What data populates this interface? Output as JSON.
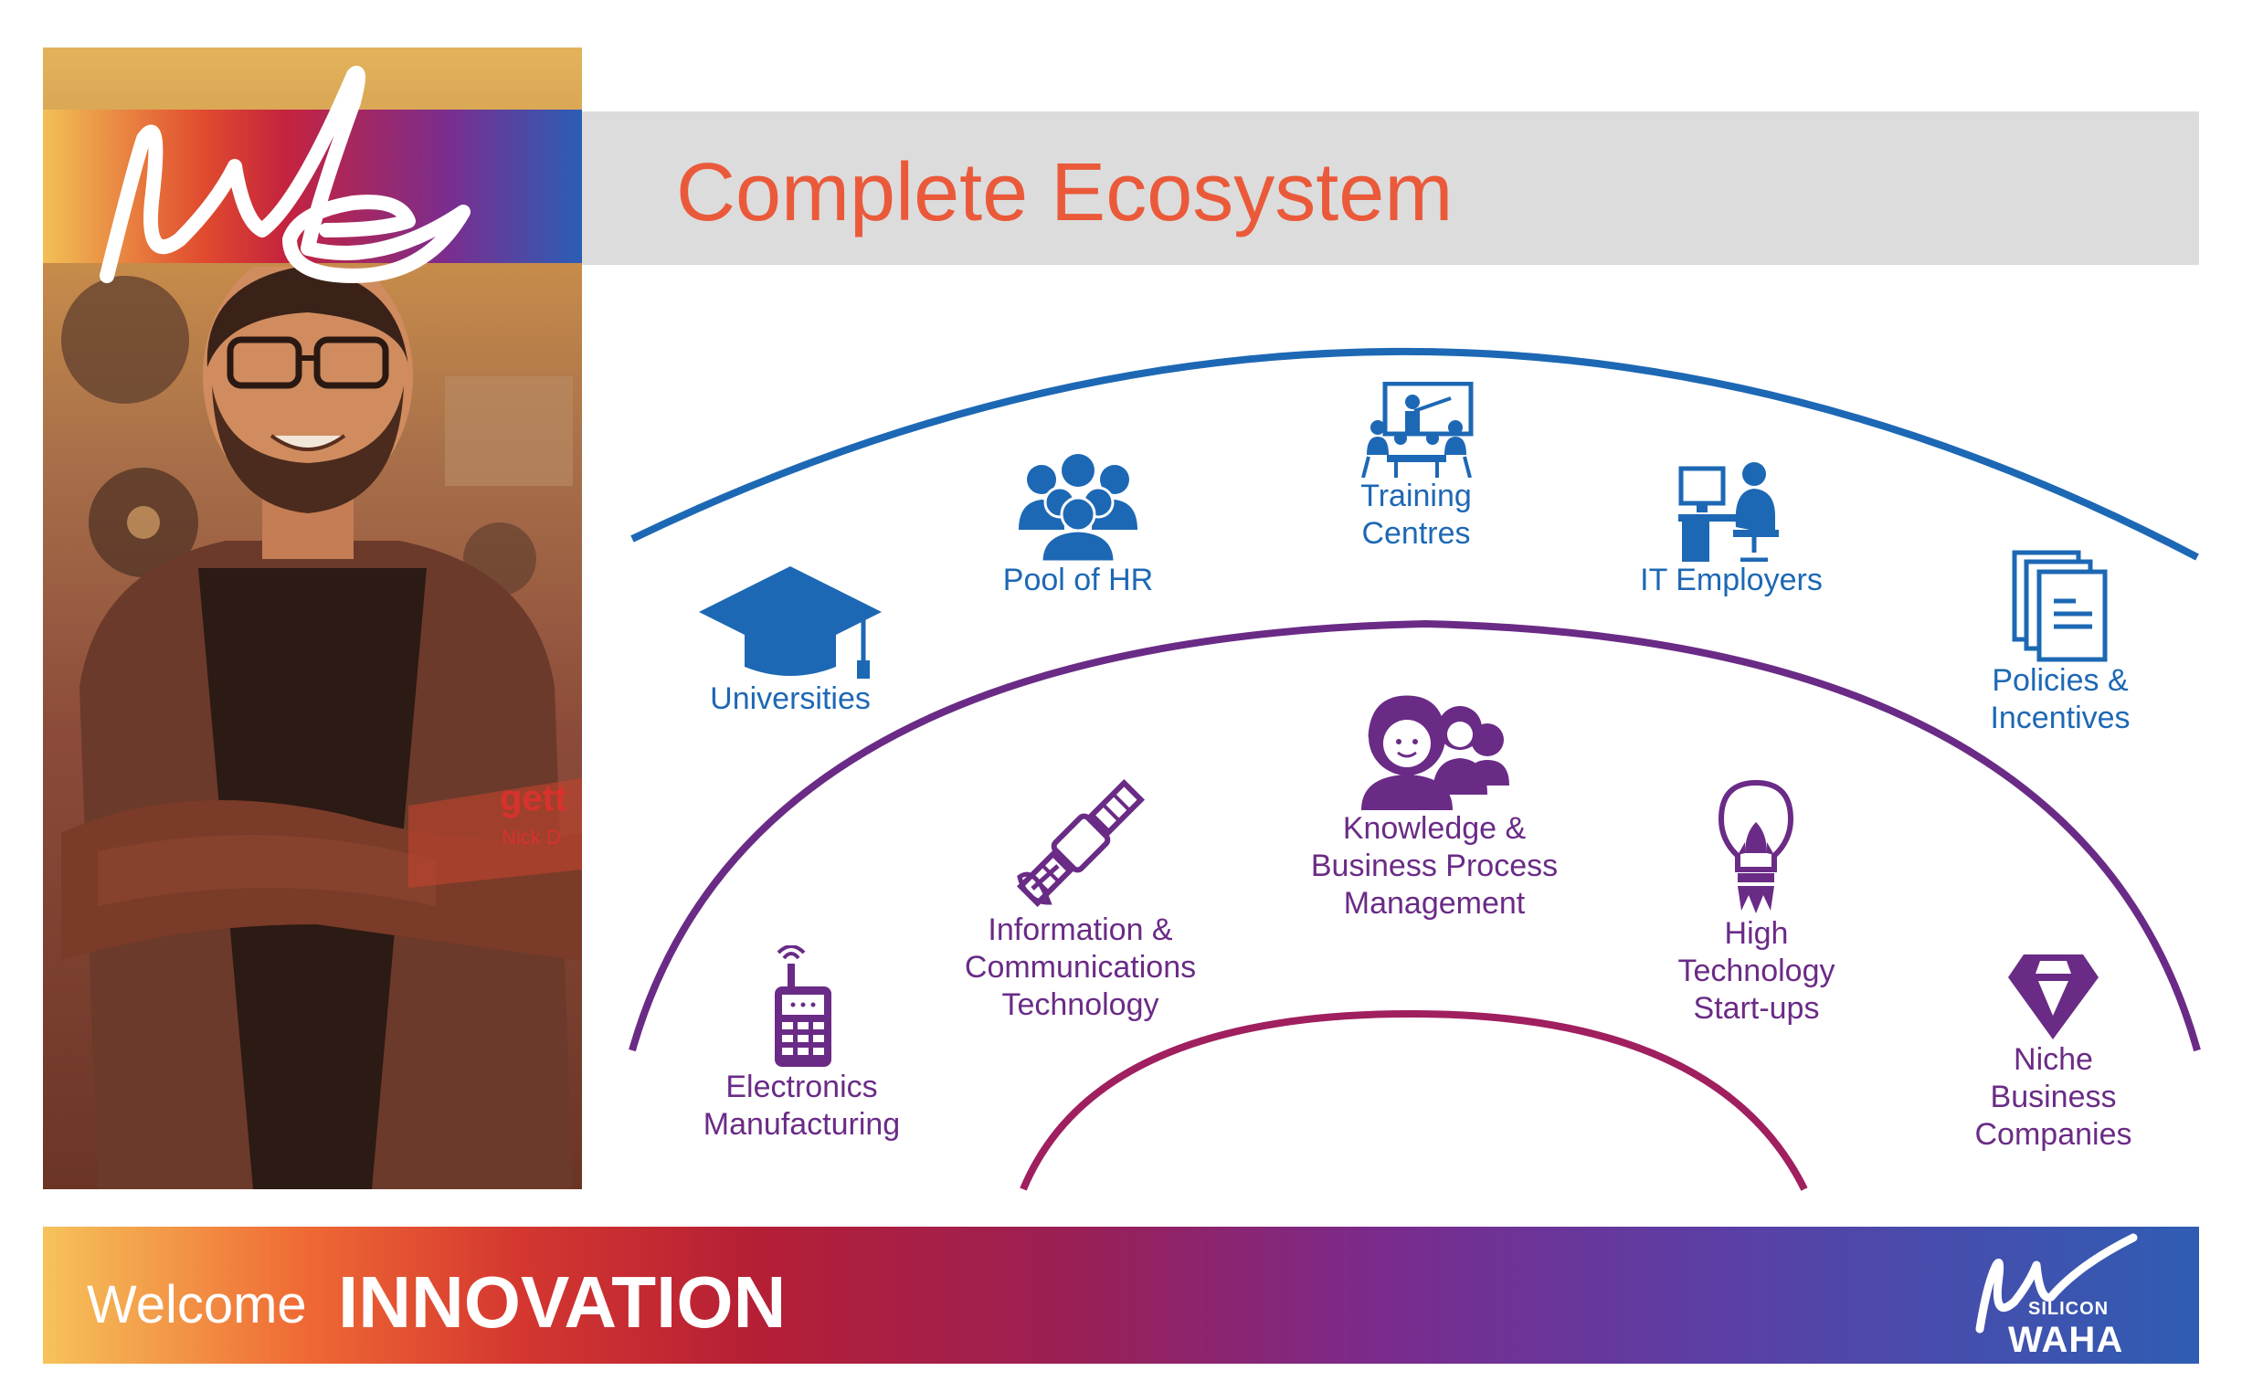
{
  "title": "Complete Ecosystem",
  "photo_panel": {
    "overlay_text": "gett",
    "overlay_sub": "Nick D"
  },
  "outer_ring": {
    "color": "#1d68b4",
    "items": [
      {
        "label": "Universities",
        "icon": "graduation-cap-icon"
      },
      {
        "label": "Pool of HR",
        "icon": "people-group-icon"
      },
      {
        "label": "Training\nCentres",
        "icon": "classroom-icon"
      },
      {
        "label": "IT Employers",
        "icon": "computer-desk-icon"
      },
      {
        "label": "Policies &\nIncentives",
        "icon": "documents-icon"
      }
    ]
  },
  "inner_ring": {
    "color": "#6a2b86",
    "items": [
      {
        "label": "Electronics\nManufacturing",
        "icon": "mobile-phone-icon"
      },
      {
        "label": "Information &\nCommunications\nTechnology",
        "icon": "satellite-icon"
      },
      {
        "label": "Knowledge &\nBusiness Process\nManagement",
        "icon": "call-center-icon"
      },
      {
        "label": "High\nTechnology\nStart-ups",
        "icon": "lightbulb-rocket-icon"
      },
      {
        "label": "Niche\nBusiness\nCompanies",
        "icon": "diamond-icon"
      }
    ]
  },
  "footer": {
    "welcome": "Welcome",
    "highlight": "INNOVATION",
    "logo_top": "SILICON",
    "logo_bottom": "WAHA"
  },
  "colors": {
    "title": "#ea5a3a",
    "outer_arc": "#1d68b4",
    "middle_arc": "#6a2b86",
    "inner_arc": "#a01f5e"
  }
}
